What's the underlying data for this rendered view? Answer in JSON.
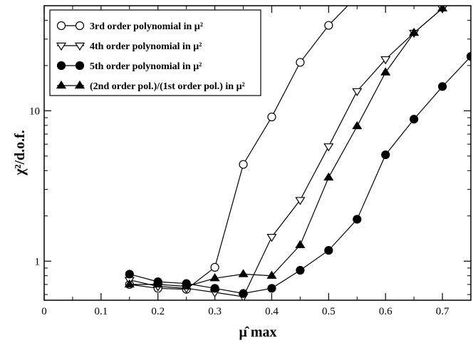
{
  "chart_data": {
    "type": "line",
    "ylabel": "χ²/d.o.f.",
    "xlabel": "μ̂ max",
    "x_scale": "linear",
    "y_scale": "log",
    "xlim": [
      0,
      0.75
    ],
    "ylim": [
      0.55,
      50
    ],
    "x_ticks": [
      "0",
      "0.1",
      "0.2",
      "0.3",
      "0.4",
      "0.5",
      "0.6",
      "0.7"
    ],
    "y_ticks": [
      "1",
      "10"
    ],
    "grid": false,
    "legend_position": "top-left",
    "series": [
      {
        "name": "3rd order polynomial in μ²",
        "marker": "open-circle",
        "x": [
          0.15,
          0.2,
          0.25,
          0.3,
          0.35,
          0.4,
          0.45,
          0.5,
          0.55
        ],
        "y": [
          0.7,
          0.66,
          0.65,
          0.91,
          4.4,
          9.1,
          21,
          37,
          58
        ]
      },
      {
        "name": "4th order polynomial in μ²",
        "marker": "open-triangle-down",
        "x": [
          0.15,
          0.2,
          0.25,
          0.3,
          0.35,
          0.4,
          0.45,
          0.5,
          0.55,
          0.6,
          0.65,
          0.7
        ],
        "y": [
          0.75,
          0.68,
          0.66,
          0.62,
          0.58,
          1.45,
          2.55,
          5.8,
          13.5,
          22,
          33,
          48
        ]
      },
      {
        "name": "5th order polynomial in μ²",
        "marker": "filled-circle",
        "x": [
          0.15,
          0.2,
          0.25,
          0.3,
          0.35,
          0.4,
          0.45,
          0.5,
          0.55,
          0.6,
          0.65,
          0.7,
          0.75
        ],
        "y": [
          0.82,
          0.73,
          0.71,
          0.66,
          0.61,
          0.66,
          0.87,
          1.18,
          1.9,
          5.1,
          8.8,
          14.5,
          23
        ]
      },
      {
        "name": "(2nd order pol.)/(1st order pol.) in μ²",
        "marker": "filled-triangle-up",
        "x": [
          0.15,
          0.2,
          0.25,
          0.3,
          0.35,
          0.4,
          0.45,
          0.5,
          0.55,
          0.6,
          0.65,
          0.7
        ],
        "y": [
          0.7,
          0.7,
          0.68,
          0.77,
          0.82,
          0.8,
          1.28,
          3.6,
          7.9,
          18,
          33,
          48
        ]
      }
    ]
  }
}
